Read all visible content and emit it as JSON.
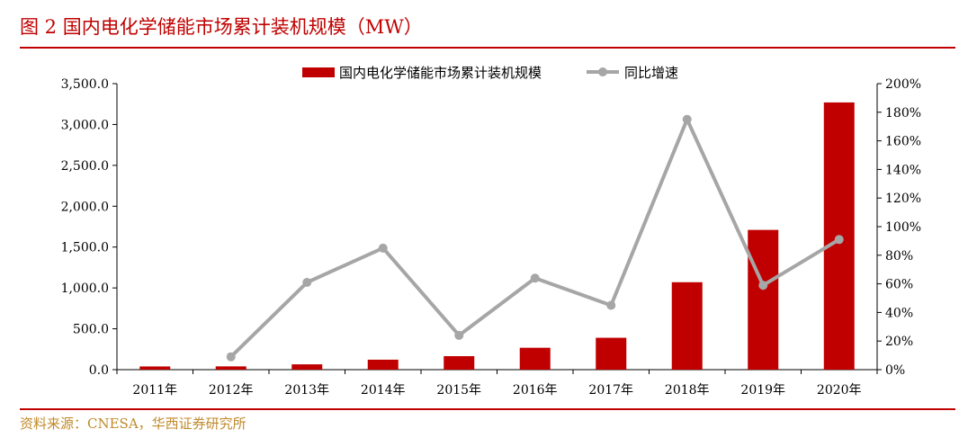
{
  "figure": {
    "title": "图 2 国内电化学储能市场累计装机规模（MW）",
    "source": "资料来源：CNESA，华西证券研究所"
  },
  "chart_data": {
    "type": "bar+line",
    "categories": [
      "2011年",
      "2012年",
      "2013年",
      "2014年",
      "2015年",
      "2016年",
      "2017年",
      "2018年",
      "2019年",
      "2020年"
    ],
    "series": [
      {
        "name": "国内电化学储能市场累计装机规模",
        "type": "bar",
        "axis": "left",
        "color": "#c00000",
        "values": [
          39,
          40,
          65,
          122,
          165,
          268,
          390,
          1070,
          1710,
          3270
        ]
      },
      {
        "name": "同比增速",
        "type": "line",
        "axis": "right",
        "color": "#a6a6a6",
        "unit": "%",
        "values": [
          null,
          9,
          61,
          85,
          24,
          64,
          45,
          175,
          59,
          91
        ]
      }
    ],
    "y_left": {
      "min": 0,
      "max": 3500,
      "ticks": [
        "0.0",
        "500.0",
        "1,000.0",
        "1,500.0",
        "2,000.0",
        "2,500.0",
        "3,000.0",
        "3,500.0"
      ],
      "tick_values": [
        0,
        500,
        1000,
        1500,
        2000,
        2500,
        3000,
        3500
      ]
    },
    "y_right": {
      "min": 0,
      "max": 200,
      "ticks": [
        "0%",
        "20%",
        "40%",
        "60%",
        "80%",
        "100%",
        "120%",
        "140%",
        "160%",
        "180%",
        "200%"
      ],
      "tick_values": [
        0,
        20,
        40,
        60,
        80,
        100,
        120,
        140,
        160,
        180,
        200
      ]
    },
    "legend_position": "top-center",
    "grid": false
  }
}
